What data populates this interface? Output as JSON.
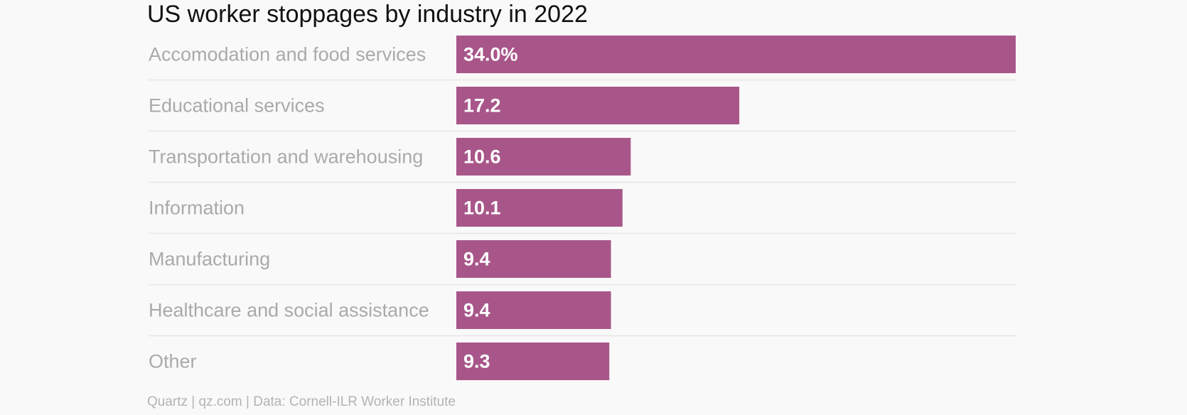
{
  "chart_data": {
    "type": "bar",
    "orientation": "horizontal",
    "title": "US worker stoppages by industry in 2022",
    "categories": [
      "Accomodation and food services",
      "Educational services",
      "Transportation and warehousing",
      "Information",
      "Manufacturing",
      "Healthcare and social assistance",
      "Other"
    ],
    "values": [
      34.0,
      17.2,
      10.6,
      10.1,
      9.4,
      9.4,
      9.3
    ],
    "value_labels": [
      "34.0%",
      "17.2",
      "10.6",
      "10.1",
      "9.4",
      "9.4",
      "9.3"
    ],
    "xlim": [
      0,
      34
    ],
    "grid": false,
    "bar_color": "#a8568a",
    "label_color": "#aaaaaa",
    "value_label_color": "#ffffff",
    "separator_color": "#e6e6e6"
  },
  "footer": {
    "source": "Quartz | qz.com | Data: Cornell-ILR Worker Institute"
  }
}
